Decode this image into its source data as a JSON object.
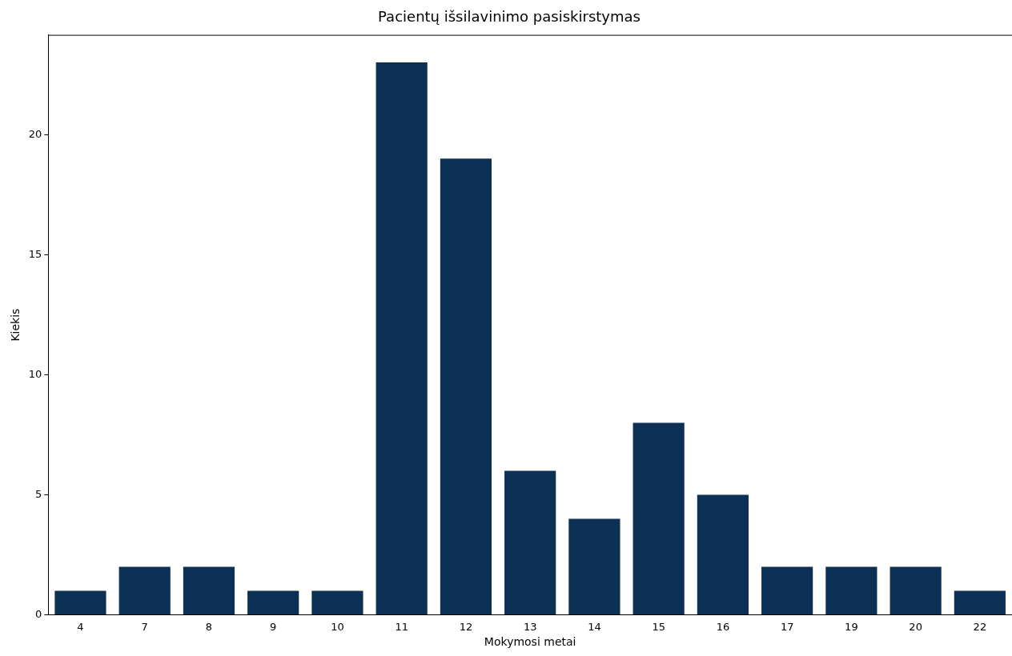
{
  "chart_data": {
    "type": "bar",
    "title": "Pacientų išsilavinimo pasiskirstymas",
    "xlabel": "Mokymosi metai",
    "ylabel": "Kiekis",
    "categories": [
      "4",
      "7",
      "8",
      "9",
      "10",
      "11",
      "12",
      "13",
      "14",
      "15",
      "16",
      "17",
      "19",
      "20",
      "22"
    ],
    "values": [
      1,
      2,
      2,
      1,
      1,
      23,
      19,
      6,
      4,
      8,
      5,
      2,
      2,
      2,
      1
    ],
    "color": "#0d3055",
    "ylim": [
      0,
      24.15
    ],
    "yticks": [
      0,
      5,
      10,
      15,
      20
    ],
    "grid": false,
    "legend": false
  }
}
